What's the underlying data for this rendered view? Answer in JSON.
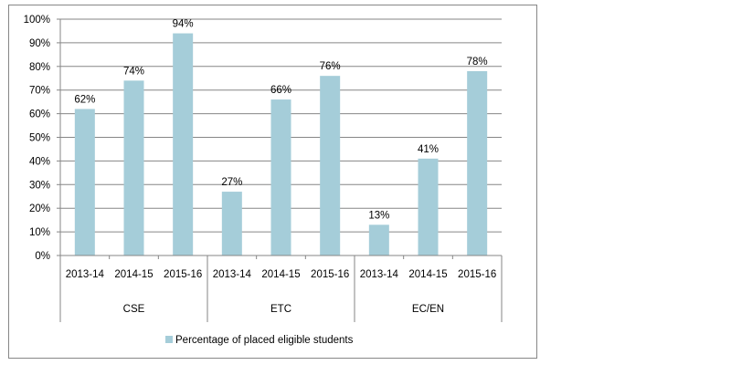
{
  "chart_data": {
    "type": "bar",
    "groups": [
      {
        "name": "CSE",
        "categories": [
          "2013-14",
          "2014-15",
          "2015-16"
        ],
        "values": [
          62,
          74,
          94
        ]
      },
      {
        "name": "ETC",
        "categories": [
          "2013-14",
          "2014-15",
          "2015-16"
        ],
        "values": [
          27,
          66,
          76
        ]
      },
      {
        "name": "EC/EN",
        "categories": [
          "2013-14",
          "2014-15",
          "2015-16"
        ],
        "values": [
          13,
          41,
          78
        ]
      }
    ],
    "series": [
      {
        "name": "Percentage of placed eligible students"
      }
    ],
    "data_labels": [
      "62%",
      "74%",
      "94%",
      "27%",
      "66%",
      "76%",
      "13%",
      "41%",
      "78%"
    ],
    "y_ticks": [
      "0%",
      "10%",
      "20%",
      "30%",
      "40%",
      "50%",
      "60%",
      "70%",
      "80%",
      "90%",
      "100%"
    ],
    "ylim": [
      0,
      100
    ],
    "grid": true,
    "legend_position": "bottom",
    "colors": {
      "bar": "#A5CDD9",
      "grid": "#868686",
      "axis": "#868686"
    }
  }
}
